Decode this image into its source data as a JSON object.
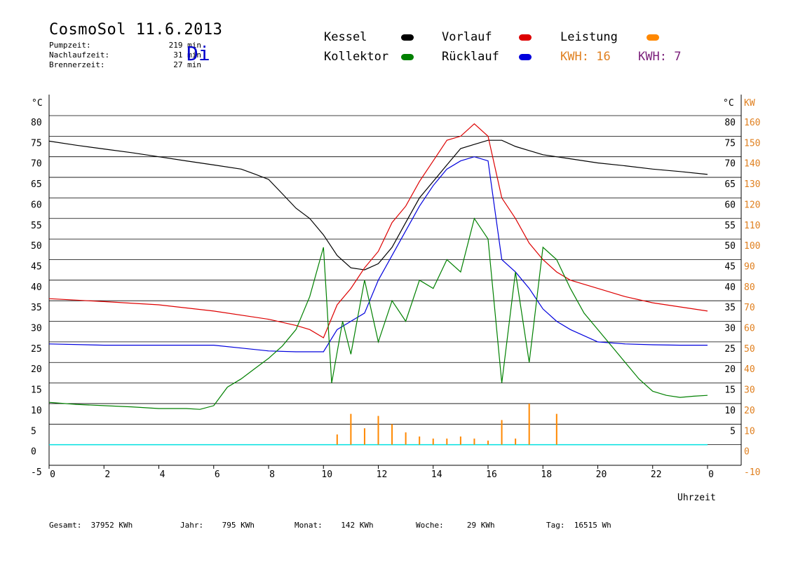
{
  "header": {
    "title": "CosmoSol 11.6.2013",
    "weekday": "Di",
    "stats": [
      {
        "label": "Pumpzeit:",
        "value": "219 min"
      },
      {
        "label": "Nachlaufzeit:",
        "value": "31 min"
      },
      {
        "label": "Brennerzeit:",
        "value": "27 min"
      }
    ]
  },
  "legend": {
    "items": [
      {
        "label": "Kessel",
        "color": "#000000"
      },
      {
        "label": "Vorlauf",
        "color": "#dd0000"
      },
      {
        "label": "Leistung",
        "color": "#ff8800"
      },
      {
        "label": "Kollektor",
        "color": "#008000"
      },
      {
        "label": "Rücklauf",
        "color": "#0000dd"
      }
    ],
    "kwh": [
      {
        "label": "KWH:",
        "value": "16",
        "color": "#e08020"
      },
      {
        "label": "KWH:",
        "value": "7",
        "color": "#7a1f7a"
      }
    ]
  },
  "footer": [
    {
      "label": "Gesamt:",
      "value": "37952 KWh"
    },
    {
      "label": "Jahr:",
      "value": "795 KWh"
    },
    {
      "label": "Monat:",
      "value": "142 KWh"
    },
    {
      "label": "Woche:",
      "value": "29 KWh"
    },
    {
      "label": "Tag:",
      "value": "16515 Wh"
    }
  ],
  "chart_data": {
    "type": "line",
    "xlabel": "Uhrzeit",
    "xlim": [
      0,
      24
    ],
    "x_ticks": [
      "0",
      "2",
      "4",
      "6",
      "8",
      "10",
      "12",
      "14",
      "16",
      "18",
      "20",
      "22",
      "0"
    ],
    "ylim": [
      -5,
      80
    ],
    "y_ticks_left": [
      "80",
      "75",
      "70",
      "65",
      "60",
      "55",
      "50",
      "45",
      "40",
      "35",
      "30",
      "25",
      "20",
      "15",
      "10",
      "5",
      "0",
      "-5"
    ],
    "y_unit_left": "°C",
    "y_ticks_right": [
      "80",
      "75",
      "70",
      "65",
      "60",
      "55",
      "50",
      "45",
      "40",
      "35",
      "30",
      "25",
      "20",
      "15",
      "10",
      "5"
    ],
    "y_unit_right": "°C",
    "y2lim": [
      -10,
      160
    ],
    "y2_ticks": [
      "160",
      "150",
      "140",
      "130",
      "120",
      "110",
      "100",
      "90",
      "80",
      "70",
      "60",
      "50",
      "40",
      "30",
      "20",
      "10",
      "0",
      "-10"
    ],
    "y2_unit": "KW",
    "grid": true,
    "series": [
      {
        "name": "Kessel",
        "color": "#000000",
        "x": [
          0,
          1,
          2,
          3,
          4,
          5,
          6,
          7,
          7.5,
          8,
          8.5,
          9,
          9.5,
          10,
          10.5,
          11,
          11.5,
          12,
          12.5,
          13,
          13.5,
          14,
          14.5,
          15,
          15.5,
          16,
          16.5,
          17,
          17.5,
          18,
          18.5,
          19,
          20,
          21,
          22,
          23,
          24
        ],
        "y": [
          73.8,
          72.8,
          71.9,
          71,
          70,
          69,
          68,
          67,
          65.8,
          64.5,
          61,
          57.5,
          55,
          51,
          46,
          43,
          42.5,
          44,
          48,
          54,
          60,
          64,
          68,
          72,
          73,
          74,
          74,
          72.5,
          71.5,
          70.5,
          70,
          69.5,
          68.5,
          67.8,
          67,
          66.4,
          65.7
        ]
      },
      {
        "name": "Vorlauf",
        "color": "#dd0000",
        "x": [
          0,
          2,
          4,
          6,
          8,
          9,
          9.5,
          10,
          10.5,
          11,
          11.5,
          12,
          12.5,
          13,
          13.5,
          14,
          14.5,
          15,
          15.5,
          16,
          16.5,
          17,
          17.5,
          18,
          18.5,
          19,
          20,
          21,
          22,
          23,
          24
        ],
        "y": [
          35.5,
          34.8,
          34,
          32.5,
          30.5,
          29,
          28,
          26,
          34,
          38,
          43,
          47,
          54,
          58,
          64,
          69,
          74,
          75,
          78,
          75,
          60,
          55,
          49,
          45,
          42,
          40,
          38,
          36,
          34.5,
          33.5,
          32.5
        ]
      },
      {
        "name": "Rücklauf",
        "color": "#0000dd",
        "x": [
          0,
          2,
          4,
          6,
          7,
          8,
          9,
          10,
          10.5,
          11,
          11.5,
          12,
          12.5,
          13,
          13.5,
          14,
          14.5,
          15,
          15.5,
          16,
          16.5,
          17,
          17.5,
          18,
          18.5,
          19,
          20,
          21,
          22,
          23,
          24
        ],
        "y": [
          24.5,
          24.2,
          24.2,
          24.2,
          23.5,
          22.8,
          22.6,
          22.6,
          28,
          30,
          32,
          40,
          46,
          52,
          58,
          63,
          67,
          69,
          70,
          69,
          45,
          42,
          38,
          33,
          30,
          28,
          25,
          24.5,
          24.3,
          24.2,
          24.2
        ]
      },
      {
        "name": "Kollektor",
        "color": "#008000",
        "x": [
          0,
          1,
          2,
          3,
          4,
          5,
          5.5,
          6,
          6.5,
          7,
          7.5,
          8,
          8.5,
          9,
          9.5,
          10,
          10.3,
          10.7,
          11,
          11.5,
          12,
          12.5,
          13,
          13.5,
          14,
          14.5,
          15,
          15.5,
          16,
          16.5,
          17,
          17.5,
          18,
          18.5,
          19,
          19.5,
          20,
          20.5,
          21,
          21.5,
          22,
          22.5,
          23,
          23.5,
          24
        ],
        "y": [
          10.3,
          9.8,
          9.5,
          9.2,
          8.8,
          8.8,
          8.6,
          9.5,
          14,
          16,
          18.5,
          21,
          24,
          28,
          36,
          48,
          15,
          30,
          22,
          40,
          25,
          35,
          30,
          40,
          38,
          45,
          42,
          55,
          50,
          15,
          42,
          20,
          48,
          45,
          38,
          32,
          28,
          24,
          20,
          16,
          13,
          12,
          11.5,
          11.8,
          12
        ]
      }
    ],
    "power_kw": [
      0,
      0,
      0,
      0,
      0,
      0,
      0,
      0,
      0,
      0,
      0,
      0,
      0,
      0,
      0,
      0,
      0,
      0,
      0,
      0,
      0,
      5,
      15,
      8,
      14,
      10,
      6,
      4,
      3,
      3,
      4,
      3,
      2,
      12,
      3,
      20,
      0,
      15,
      0,
      0,
      0,
      0,
      0,
      0,
      0,
      0,
      0,
      0
    ],
    "power_x_step": 0.5
  }
}
